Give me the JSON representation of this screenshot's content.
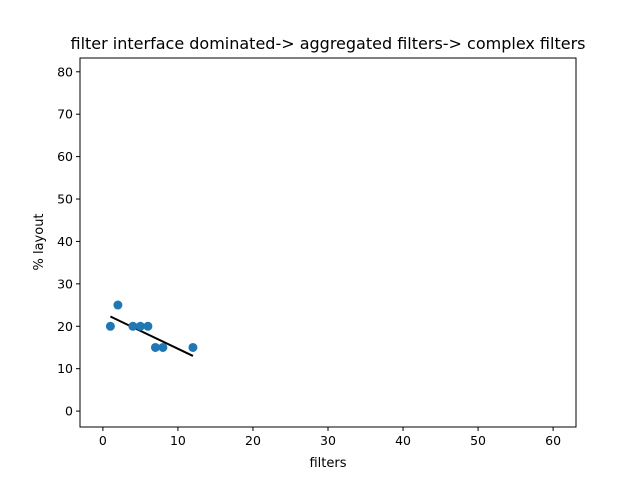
{
  "chart_data": {
    "type": "scatter",
    "title": "filter interface dominated-> aggregated filters-> complex filters",
    "xlabel": "filters",
    "ylabel": "% layout",
    "xlim": [
      -3.05,
      63.05
    ],
    "ylim": [
      -3.75,
      83.25
    ],
    "xticks": [
      0,
      10,
      20,
      30,
      40,
      50,
      60
    ],
    "yticks": [
      0,
      10,
      20,
      30,
      40,
      50,
      60,
      70,
      80
    ],
    "grid": false,
    "series": [
      {
        "type": "scatter",
        "color": "#1f77b4",
        "x": [
          1,
          2,
          4,
          5,
          6,
          7,
          8,
          12
        ],
        "y": [
          20,
          25,
          20,
          20,
          20,
          15,
          15,
          15
        ]
      }
    ],
    "fit_line": {
      "type": "line",
      "color": "#000000",
      "x": [
        1,
        12
      ],
      "y": [
        22.3,
        13.0
      ]
    }
  }
}
